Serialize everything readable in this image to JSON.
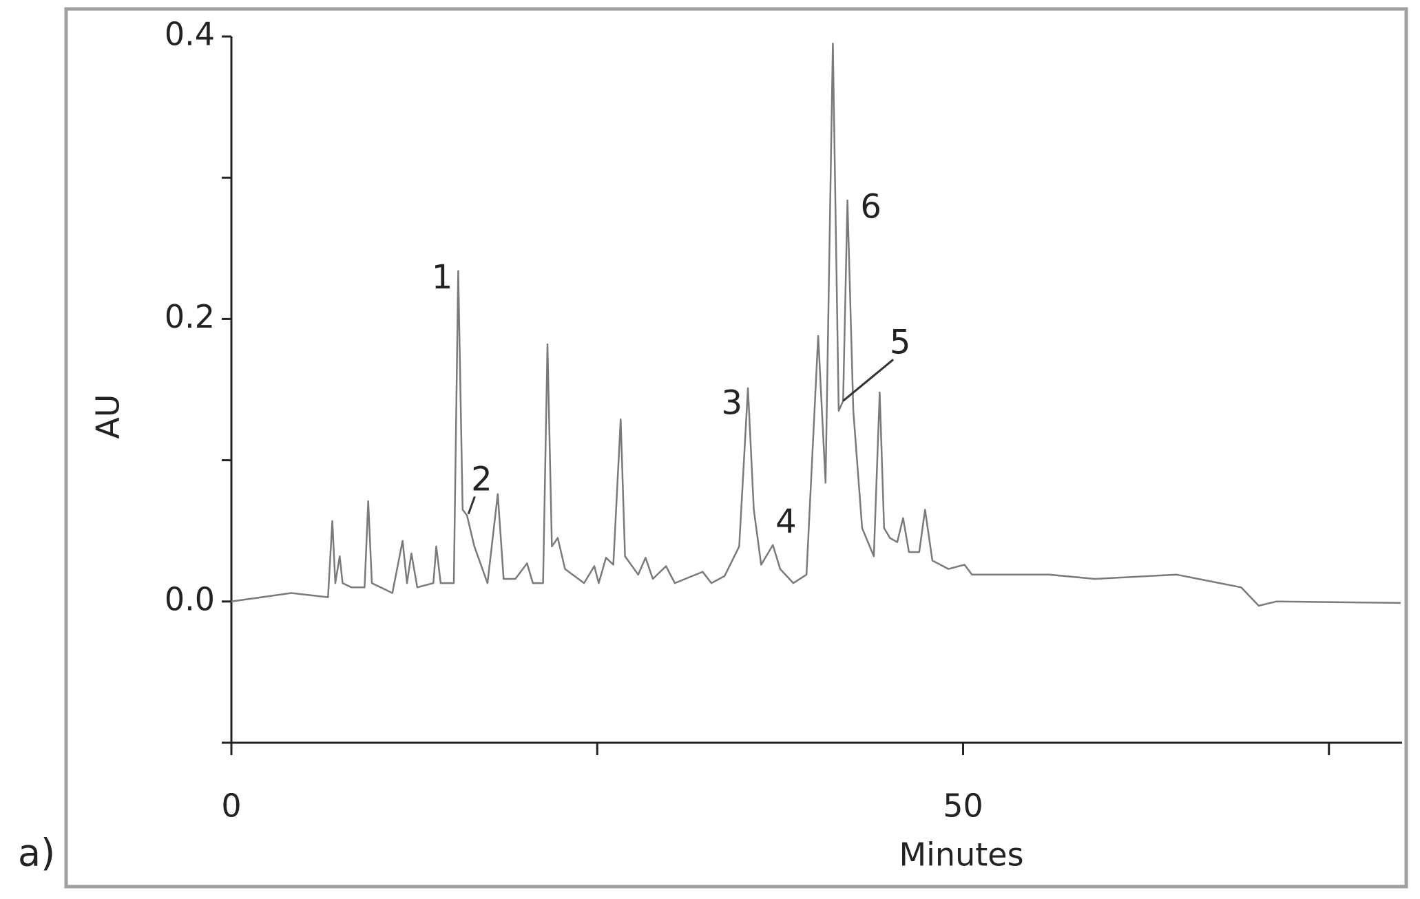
{
  "chart_data": {
    "type": "line",
    "panel_label": "a)",
    "x_label": "Minutes",
    "y_label": "AU",
    "color": "#7a7a7a",
    "xlim": [
      0,
      80
    ],
    "ylim": [
      -0.1,
      0.4
    ],
    "xticks": [
      0,
      50
    ],
    "xminor_ticks": [
      25,
      75
    ],
    "yticks": [
      {
        "value": 0,
        "label": "0.0"
      },
      {
        "value": 0.2,
        "label": "0.2"
      },
      {
        "value": 0.4,
        "label": "0.4"
      }
    ],
    "yminor_ticks": [
      0.1,
      0.3
    ],
    "x": [
      0,
      4.1,
      6.6,
      6.9,
      7.1,
      7.4,
      7.6,
      8.2,
      9.1,
      9.35,
      9.6,
      11.0,
      11.7,
      12.0,
      12.3,
      12.7,
      13.8,
      14.0,
      14.3,
      15.2,
      15.5,
      15.8,
      16.1,
      16.6,
      17.5,
      18.2,
      18.6,
      19.4,
      20.2,
      20.6,
      21.3,
      21.6,
      21.9,
      22.3,
      22.8,
      24.1,
      24.8,
      25.1,
      25.6,
      26.1,
      26.6,
      26.9,
      27.8,
      28.3,
      28.8,
      29.7,
      30.3,
      32.2,
      32.8,
      33.7,
      34.7,
      35.3,
      35.7,
      36.2,
      37.0,
      37.5,
      38.4,
      39.3,
      40.1,
      40.6,
      41.1,
      41.5,
      41.8,
      42.1,
      42.5,
      43.1,
      43.9,
      44.3,
      44.6,
      45.0,
      45.5,
      45.9,
      46.3,
      47.0,
      47.4,
      47.9,
      49.0,
      50.1,
      50.6,
      55.9,
      59.0,
      64.6,
      69.0,
      70.2,
      71.4,
      79.9
    ],
    "values": [
      0,
      0.006,
      0.003,
      0.057,
      0.013,
      0.032,
      0.013,
      0.01,
      0.01,
      0.071,
      0.013,
      0.006,
      0.043,
      0.013,
      0.034,
      0.01,
      0.013,
      0.039,
      0.013,
      0.013,
      0.234,
      0.065,
      0.061,
      0.039,
      0.013,
      0.076,
      0.016,
      0.016,
      0.027,
      0.013,
      0.013,
      0.182,
      0.039,
      0.045,
      0.023,
      0.013,
      0.025,
      0.013,
      0.031,
      0.026,
      0.129,
      0.032,
      0.019,
      0.031,
      0.016,
      0.025,
      0.013,
      0.021,
      0.013,
      0.018,
      0.039,
      0.151,
      0.065,
      0.026,
      0.04,
      0.023,
      0.013,
      0.019,
      0.188,
      0.084,
      0.395,
      0.135,
      0.142,
      0.284,
      0.135,
      0.052,
      0.032,
      0.148,
      0.052,
      0.045,
      0.042,
      0.059,
      0.035,
      0.035,
      0.065,
      0.029,
      0.023,
      0.026,
      0.019,
      0.019,
      0.016,
      0.019,
      0.01,
      -0.003,
      0,
      -0.001
    ],
    "annotations": [
      {
        "text": "1",
        "x": 14.4,
        "y": 0.228
      },
      {
        "text": "2",
        "x": 17.1,
        "y": 0.085,
        "arrow_to": [
          16.2,
          0.062
        ]
      },
      {
        "text": "3",
        "x": 34.2,
        "y": 0.139
      },
      {
        "text": "4",
        "x": 37.9,
        "y": 0.055
      },
      {
        "text": "5",
        "x": 45.7,
        "y": 0.182,
        "arrow_to": [
          41.8,
          0.142
        ]
      },
      {
        "text": "6",
        "x": 43.7,
        "y": 0.278
      }
    ]
  }
}
